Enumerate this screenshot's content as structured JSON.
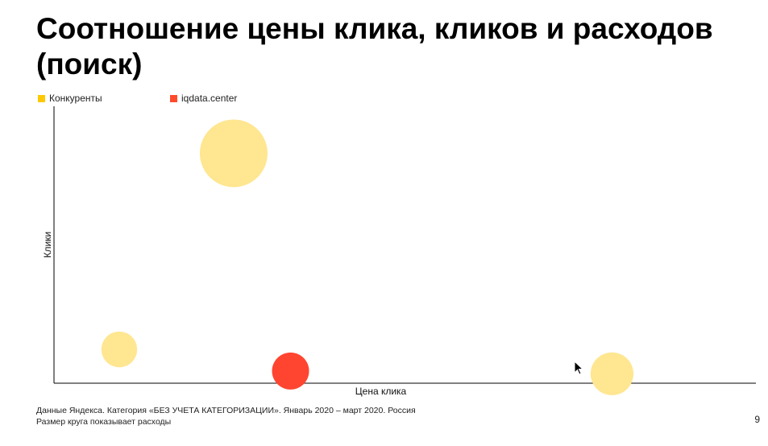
{
  "slide": {
    "title": "Соотношение цены клика, кликов и расходов (поиск)",
    "footnote_line1": "Данные Яндекса. Категория «БЕЗ УЧЕТА КАТЕГОРИЗАЦИИ». Январь 2020 – март 2020. Россия",
    "footnote_line2": "Размер круга показывает расходы",
    "page_number": "9"
  },
  "legend": {
    "items": [
      {
        "label": "Конкуренты",
        "color": "#FFC800"
      },
      {
        "label": "iqdata.center",
        "color": "#FF4B2B"
      }
    ]
  },
  "chart_data": {
    "type": "scatter",
    "xlabel": "Цена клика",
    "ylabel": "Клики",
    "xlim": [
      0,
      100
    ],
    "ylim": [
      0,
      100
    ],
    "grid": false,
    "legend_position": "top-left",
    "series": [
      {
        "name": "Конкуренты",
        "color": "#FFE690",
        "points": [
          {
            "x": 25.6,
            "y": 83.0,
            "size": 100
          },
          {
            "x": 9.3,
            "y": 12.2,
            "size": 28
          },
          {
            "x": 79.5,
            "y": 3.4,
            "size": 40
          }
        ]
      },
      {
        "name": "iqdata.center",
        "color": "#FF4530",
        "points": [
          {
            "x": 33.7,
            "y": 4.4,
            "size": 30
          }
        ]
      }
    ]
  }
}
